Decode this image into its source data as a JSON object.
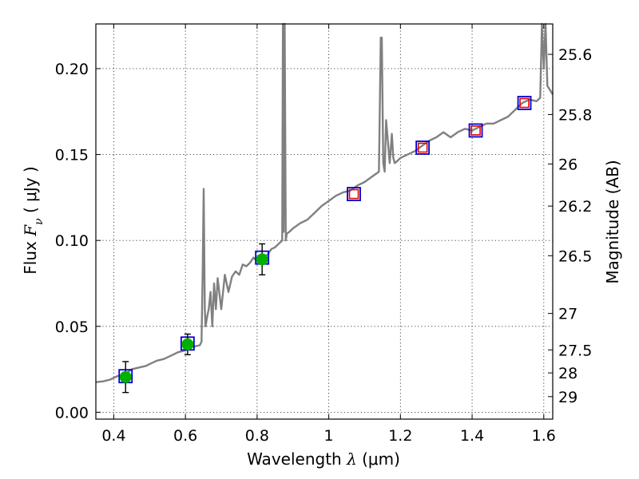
{
  "chart_data": {
    "type": "line",
    "title": "",
    "xlabel": {
      "prefix": "Wavelength  ",
      "symbol": "λ",
      "unit": " (μm)"
    },
    "ylabel": {
      "prefix": "Flux  ",
      "symbol": "F",
      "subscript": "ν",
      "unit": "  ( μJy )"
    },
    "y2label": "Magnitude (AB)",
    "xlim": [
      0.35,
      1.625
    ],
    "ylim": [
      -0.004,
      0.226
    ],
    "grid": true,
    "xticks": [
      0.4,
      0.6,
      0.8,
      1.0,
      1.2,
      1.4,
      1.6
    ],
    "xtick_labels": [
      "0.4",
      "0.6",
      "0.8",
      "1",
      "1.2",
      "1.4",
      "1.6"
    ],
    "yticks": [
      0.0,
      0.05,
      0.1,
      0.15,
      0.2
    ],
    "ytick_labels": [
      "0.00",
      "0.05",
      "0.10",
      "0.15",
      "0.20"
    ],
    "y2ticks": [
      {
        "label": "25.6",
        "flux": 0.2083
      },
      {
        "label": "25.8",
        "flux": 0.1733
      },
      {
        "label": "26",
        "flux": 0.1445
      },
      {
        "label": "26.2",
        "flux": 0.12
      },
      {
        "label": "26.5",
        "flux": 0.0911
      },
      {
        "label": "27",
        "flux": 0.0575
      },
      {
        "label": "27.5",
        "flux": 0.0363
      },
      {
        "label": "28",
        "flux": 0.0229
      },
      {
        "label": "29",
        "flux": 0.0091
      }
    ],
    "series": [
      {
        "name": "model-spectrum",
        "color": "#808080",
        "x": [
          0.35,
          0.37,
          0.39,
          0.41,
          0.43,
          0.45,
          0.47,
          0.49,
          0.5,
          0.52,
          0.54,
          0.56,
          0.58,
          0.6,
          0.62,
          0.64,
          0.645,
          0.648,
          0.651,
          0.654,
          0.656,
          0.66,
          0.665,
          0.67,
          0.675,
          0.68,
          0.685,
          0.69,
          0.7,
          0.71,
          0.72,
          0.73,
          0.74,
          0.75,
          0.76,
          0.77,
          0.78,
          0.79,
          0.8,
          0.81,
          0.82,
          0.83,
          0.84,
          0.85,
          0.86,
          0.87,
          0.872,
          0.874,
          0.877,
          0.88,
          0.883,
          0.89,
          0.9,
          0.92,
          0.94,
          0.96,
          0.98,
          1.0,
          1.02,
          1.04,
          1.06,
          1.08,
          1.1,
          1.12,
          1.14,
          1.145,
          1.148,
          1.152,
          1.156,
          1.16,
          1.17,
          1.176,
          1.18,
          1.184,
          1.19,
          1.2,
          1.22,
          1.24,
          1.26,
          1.28,
          1.3,
          1.32,
          1.34,
          1.36,
          1.38,
          1.4,
          1.42,
          1.44,
          1.46,
          1.48,
          1.5,
          1.52,
          1.54,
          1.56,
          1.58,
          1.59,
          1.595,
          1.6,
          1.605,
          1.61,
          1.625
        ],
        "y": [
          0.0175,
          0.018,
          0.019,
          0.021,
          0.022,
          0.025,
          0.026,
          0.027,
          0.028,
          0.03,
          0.031,
          0.033,
          0.035,
          0.036,
          0.038,
          0.039,
          0.041,
          0.08,
          0.13,
          0.06,
          0.05,
          0.055,
          0.06,
          0.07,
          0.05,
          0.075,
          0.06,
          0.078,
          0.06,
          0.08,
          0.07,
          0.079,
          0.082,
          0.08,
          0.086,
          0.085,
          0.087,
          0.09,
          0.088,
          0.09,
          0.09,
          0.092,
          0.095,
          0.096,
          0.098,
          0.1,
          0.226,
          0.105,
          0.226,
          0.1,
          0.104,
          0.105,
          0.107,
          0.11,
          0.112,
          0.116,
          0.12,
          0.123,
          0.126,
          0.128,
          0.129,
          0.132,
          0.134,
          0.137,
          0.14,
          0.218,
          0.218,
          0.145,
          0.14,
          0.17,
          0.145,
          0.162,
          0.148,
          0.145,
          0.146,
          0.148,
          0.15,
          0.152,
          0.155,
          0.158,
          0.16,
          0.163,
          0.16,
          0.163,
          0.165,
          0.164,
          0.166,
          0.168,
          0.168,
          0.17,
          0.172,
          0.176,
          0.18,
          0.182,
          0.181,
          0.183,
          0.226,
          0.2,
          0.226,
          0.19,
          0.185
        ]
      }
    ],
    "observations": [
      {
        "name": "green-point",
        "x": 0.433,
        "y": 0.0205,
        "err": 0.009,
        "box_y": 0.021,
        "color": "#00b000",
        "model_color": "#0000cc"
      },
      {
        "name": "green-point",
        "x": 0.606,
        "y": 0.0395,
        "err": 0.006,
        "box_y": 0.04,
        "color": "#00b000",
        "model_color": "#0000cc"
      },
      {
        "name": "green-point",
        "x": 0.814,
        "y": 0.089,
        "err": 0.009,
        "box_y": 0.09,
        "color": "#00b000",
        "model_color": "#0000cc"
      },
      {
        "name": "red-point",
        "x": 1.07,
        "y": 0.127,
        "err": 0.0,
        "box_y": 0.127,
        "color": "#e60000",
        "model_color": "#0000cc"
      },
      {
        "name": "red-point",
        "x": 1.262,
        "y": 0.154,
        "err": 0.0,
        "box_y": 0.154,
        "color": "#e60000",
        "model_color": "#0000cc"
      },
      {
        "name": "red-point",
        "x": 1.41,
        "y": 0.164,
        "err": 0.0,
        "box_y": 0.164,
        "color": "#e60000",
        "model_color": "#0000cc"
      },
      {
        "name": "red-point",
        "x": 1.546,
        "y": 0.18,
        "err": 0.0,
        "box_y": 0.18,
        "color": "#e60000",
        "model_color": "#0000cc"
      }
    ]
  }
}
